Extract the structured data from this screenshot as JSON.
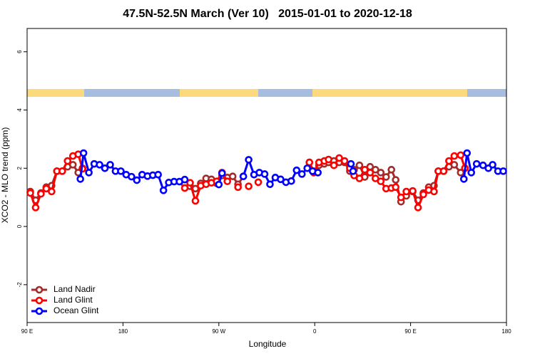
{
  "chart_data": {
    "type": "line",
    "title": "47.5N-52.5N March (Ver 10)   2015-01-01 to 2020-12-18",
    "xlabel": "Longitude",
    "ylabel": "XCO2 - MLO trend (ppm)",
    "xlim": [
      90,
      540
    ],
    "ylim": [
      -3.3,
      6.8
    ],
    "xticks": [
      {
        "value": 90,
        "label": "90 E"
      },
      180,
      {
        "value": 270,
        "label": "90 W"
      },
      {
        "value": 360,
        "label": "0"
      },
      {
        "value": 450,
        "label": "90 E"
      },
      {
        "value": 540,
        "label": "180"
      }
    ],
    "yticks": [
      -2,
      0,
      2,
      4,
      6
    ],
    "legend": "bottom-left",
    "series": [
      {
        "name": "Land Nadir",
        "color": "#a52a2a",
        "x": [
          93,
          98,
          103,
          108,
          113,
          118,
          123,
          128,
          133,
          138,
          142,
          null,
          238,
          243,
          248,
          253,
          258,
          263,
          268,
          273,
          278,
          283,
          288,
          293,
          null,
          355,
          359,
          364,
          369,
          373,
          378,
          383,
          388,
          393,
          397,
          402,
          407,
          412,
          417,
          422,
          427,
          432,
          436,
          441,
          446,
          452,
          457,
          462,
          467,
          472,
          476,
          481,
          486,
          491,
          497,
          501
        ],
        "values": [
          1.2,
          0.9,
          1.15,
          1.35,
          1.4,
          1.9,
          1.9,
          2.05,
          2.12,
          1.85,
          2.0,
          null,
          1.45,
          1.38,
          1.3,
          1.48,
          1.65,
          1.62,
          1.48,
          1.75,
          1.68,
          1.72,
          1.45,
          1.72,
          null,
          2.2,
          1.9,
          2.1,
          2.15,
          2.2,
          2.25,
          2.2,
          2.2,
          1.9,
          1.95,
          2.1,
          1.7,
          2.05,
          1.95,
          1.85,
          1.7,
          1.95,
          1.6,
          0.85,
          1.05,
          1.2,
          0.9,
          1.15,
          1.35,
          1.4,
          1.9,
          1.9,
          2.05,
          2.12,
          1.85,
          2.0
        ]
      },
      {
        "name": "Land Glint",
        "color": "#ff0000",
        "x": [
          93,
          98,
          103,
          108,
          113,
          118,
          123,
          128,
          133,
          138,
          142,
          null,
          238,
          243,
          248,
          253,
          258,
          263,
          268,
          273,
          278,
          null,
          288,
          null,
          298,
          null,
          307,
          null,
          355,
          359,
          364,
          369,
          373,
          378,
          383,
          388,
          393,
          397,
          402,
          407,
          412,
          417,
          422,
          427,
          432,
          436,
          441,
          446,
          452,
          457,
          462,
          467,
          472,
          476,
          481,
          486,
          491,
          497,
          501
        ],
        "values": [
          1.15,
          0.65,
          1.12,
          1.3,
          1.2,
          1.9,
          1.9,
          2.25,
          2.42,
          2.48,
          1.98,
          null,
          1.32,
          1.5,
          0.88,
          1.4,
          1.45,
          1.5,
          1.55,
          1.85,
          1.55,
          null,
          1.35,
          null,
          1.38,
          null,
          1.52,
          null,
          2.2,
          1.85,
          2.2,
          2.25,
          2.3,
          2.1,
          2.35,
          2.25,
          2.0,
          1.75,
          1.65,
          1.95,
          1.85,
          1.65,
          1.55,
          1.3,
          1.32,
          1.35,
          1.0,
          1.2,
          1.22,
          0.65,
          1.1,
          1.25,
          1.2,
          1.9,
          1.9,
          2.25,
          2.42,
          2.45,
          2.0
        ]
      },
      {
        "name": "Ocean Glint",
        "color": "#0000ff",
        "x": [
          140,
          143,
          148,
          153,
          158,
          163,
          168,
          173,
          178,
          183,
          188,
          193,
          198,
          203,
          208,
          213,
          218,
          223,
          228,
          233,
          238,
          null,
          270,
          273,
          null,
          293,
          298,
          303,
          308,
          313,
          318,
          323,
          328,
          333,
          338,
          343,
          348,
          353,
          358,
          363,
          null,
          394,
          396,
          null,
          500,
          503,
          507,
          512,
          518,
          523,
          527,
          532,
          537
        ],
        "values": [
          1.63,
          2.52,
          1.85,
          2.15,
          2.12,
          2.0,
          2.12,
          1.9,
          1.9,
          1.78,
          1.71,
          1.59,
          1.78,
          1.73,
          1.76,
          1.78,
          1.24,
          1.51,
          1.54,
          1.54,
          1.61,
          null,
          1.44,
          1.83,
          null,
          1.72,
          2.29,
          1.78,
          1.85,
          1.8,
          1.45,
          1.68,
          1.62,
          1.52,
          1.56,
          1.93,
          1.8,
          2.0,
          1.9,
          1.85,
          null,
          2.15,
          1.9,
          null,
          1.63,
          2.52,
          1.85,
          2.15,
          2.1,
          2.0,
          2.12,
          1.9,
          1.9
        ]
      }
    ]
  }
}
